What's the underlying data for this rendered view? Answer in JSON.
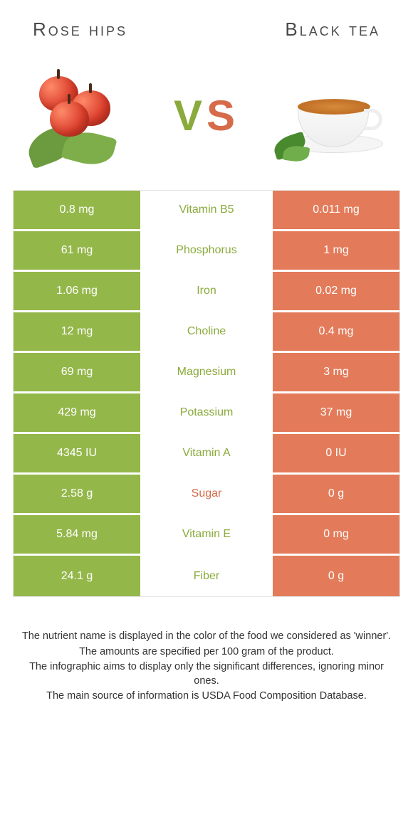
{
  "colors": {
    "left_bg": "#94b74a",
    "right_bg": "#e37b5a",
    "left_text": "#8aaa3b",
    "right_text": "#d66b4a",
    "mid_text_default": "#8aaa3b"
  },
  "header": {
    "left_title": "Rose hips",
    "right_title": "Black tea",
    "vs_v": "V",
    "vs_s": "S"
  },
  "rows": [
    {
      "left": "0.8 mg",
      "label": "Vitamin B5",
      "right": "0.011 mg",
      "winner": "left"
    },
    {
      "left": "61 mg",
      "label": "Phosphorus",
      "right": "1 mg",
      "winner": "left"
    },
    {
      "left": "1.06 mg",
      "label": "Iron",
      "right": "0.02 mg",
      "winner": "left"
    },
    {
      "left": "12 mg",
      "label": "Choline",
      "right": "0.4 mg",
      "winner": "left"
    },
    {
      "left": "69 mg",
      "label": "Magnesium",
      "right": "3 mg",
      "winner": "left"
    },
    {
      "left": "429 mg",
      "label": "Potassium",
      "right": "37 mg",
      "winner": "left"
    },
    {
      "left": "4345 IU",
      "label": "Vitamin A",
      "right": "0 IU",
      "winner": "left"
    },
    {
      "left": "2.58 g",
      "label": "Sugar",
      "right": "0 g",
      "winner": "right"
    },
    {
      "left": "5.84 mg",
      "label": "Vitamin E",
      "right": "0 mg",
      "winner": "left"
    },
    {
      "left": "24.1 g",
      "label": "Fiber",
      "right": "0 g",
      "winner": "left"
    }
  ],
  "footer": {
    "line1": "The nutrient name is displayed in the color of the food we considered as 'winner'.",
    "line2": "The amounts are specified per 100 gram of the product.",
    "line3": "The infographic aims to display only the significant differences, ignoring minor ones.",
    "line4": "The main source of information is USDA Food Composition Database."
  }
}
